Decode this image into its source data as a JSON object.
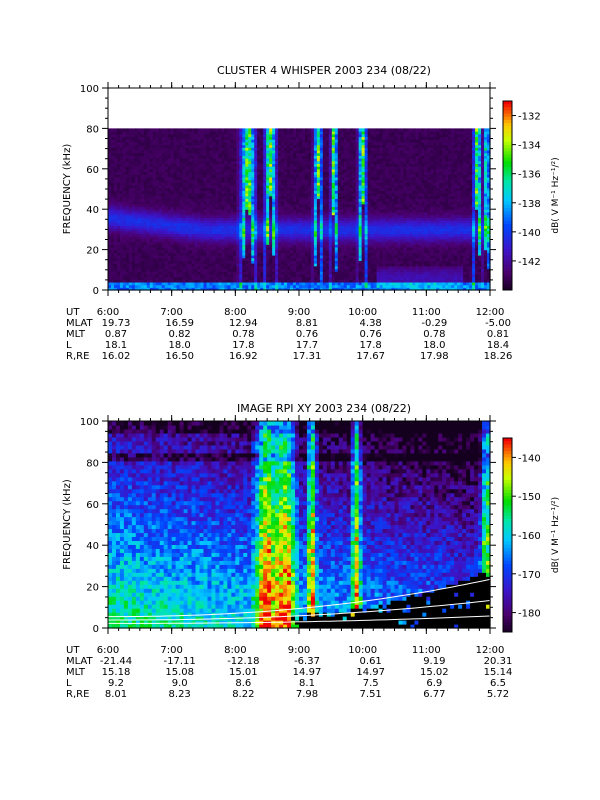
{
  "chart_data": [
    {
      "type": "heatmap",
      "title": "CLUSTER 4 WHISPER 2003 234 (08/22)",
      "ylabel": "FREQUENCY (kHz)",
      "ylim": [
        0,
        100
      ],
      "yticks": [
        "0",
        "20",
        "40",
        "60",
        "80",
        "100"
      ],
      "xticks": [
        "6:00",
        "7:00",
        "8:00",
        "9:00",
        "10:00",
        "11:00",
        "12:00"
      ],
      "colorbar": {
        "label": "dB( V M⁻¹ Hz⁻¹/²)",
        "ticks": [
          "-132",
          "-134",
          "-136",
          "-138",
          "-140",
          "-142"
        ],
        "range": [
          -144,
          -131
        ]
      },
      "data_ceiling_khz": 80,
      "ephemeris": [
        {
          "label": "UT",
          "values": [
            "6:00",
            "7:00",
            "8:00",
            "9:00",
            "10:00",
            "11:00",
            "12:00"
          ]
        },
        {
          "label": "MLAT",
          "values": [
            "19.73",
            "16.59",
            "12.94",
            "8.81",
            "4.38",
            "-0.29",
            "-5.00"
          ]
        },
        {
          "label": "MLT",
          "values": [
            "0.87",
            "0.82",
            "0.78",
            "0.76",
            "0.76",
            "0.78",
            "0.81"
          ]
        },
        {
          "label": "L",
          "values": [
            "18.1",
            "18.0",
            "17.8",
            "17.7",
            "17.8",
            "18.0",
            "18.4"
          ]
        },
        {
          "label": "R,RE",
          "values": [
            "16.02",
            "16.50",
            "16.92",
            "17.31",
            "17.67",
            "17.98",
            "18.26"
          ]
        }
      ]
    },
    {
      "type": "heatmap",
      "title": "IMAGE RPI XY 2003 234 (08/22)",
      "ylabel": "FREQUENCY (kHz)",
      "ylim": [
        0,
        100
      ],
      "yticks": [
        "0",
        "20",
        "40",
        "60",
        "80",
        "100"
      ],
      "xticks": [
        "6:00",
        "7:00",
        "8:00",
        "9:00",
        "10:00",
        "11:00",
        "12:00"
      ],
      "colorbar": {
        "label": "dB( V M⁻¹ Hz⁻¹/²)",
        "ticks": [
          "-140",
          "-150",
          "-160",
          "-170",
          "-180"
        ],
        "range": [
          -185,
          -135
        ]
      },
      "ephemeris": [
        {
          "label": "UT",
          "values": [
            "6:00",
            "7:00",
            "8:00",
            "9:00",
            "10:00",
            "11:00",
            "12:00"
          ]
        },
        {
          "label": "MLAT",
          "values": [
            "-21.44",
            "-17.11",
            "-12.18",
            "-6.37",
            "0.61",
            "9.19",
            "20.31"
          ]
        },
        {
          "label": "MLT",
          "values": [
            "15.18",
            "15.08",
            "15.01",
            "14.97",
            "14.97",
            "15.02",
            "15.14"
          ]
        },
        {
          "label": "L",
          "values": [
            "9.2",
            "9.0",
            "8.6",
            "8.1",
            "7.5",
            "6.9",
            "6.5"
          ]
        },
        {
          "label": "R,RE",
          "values": [
            "8.01",
            "8.23",
            "8.22",
            "7.98",
            "7.51",
            "6.77",
            "5.72"
          ]
        }
      ]
    }
  ]
}
